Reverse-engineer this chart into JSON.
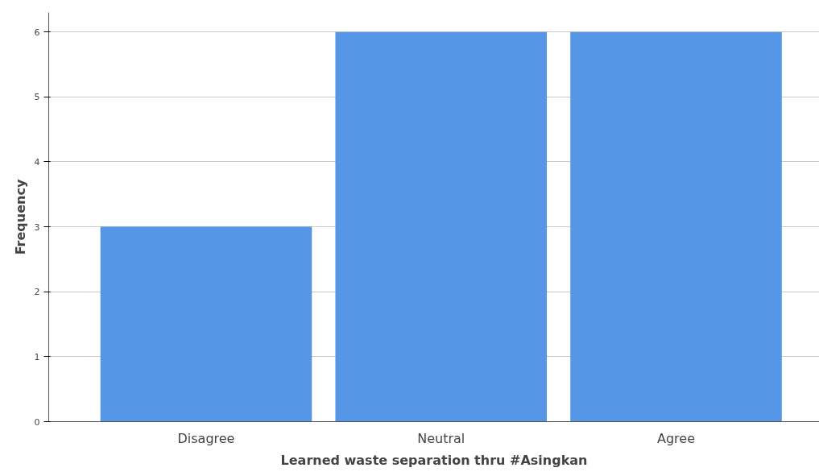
{
  "chart_data": {
    "type": "bar",
    "xlabel": "Learned waste separation thru #Asingkan",
    "ylabel": "Frequency",
    "categories": [
      "Disagree",
      "Neutral",
      "Agree"
    ],
    "values": [
      3,
      6,
      6
    ],
    "color": "#5596e6",
    "ylim": [
      0,
      6.3
    ],
    "yticks": [
      0,
      1,
      2,
      3,
      4,
      5,
      6
    ],
    "grid": "y"
  }
}
